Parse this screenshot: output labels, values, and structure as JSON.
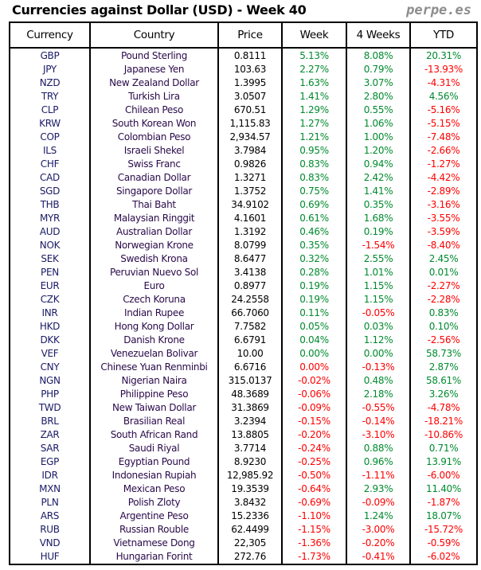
{
  "header": {
    "title": "Currencies against Dollar (USD) - Week 40",
    "brand": "perpe.es"
  },
  "columns": [
    "Currency",
    "Country",
    "Price",
    "Week",
    "4 Weeks",
    "YTD"
  ],
  "colors": {
    "positive": "#008a2e",
    "negative": "#ff0000"
  },
  "rows": [
    {
      "code": "GBP",
      "country": "Pound Sterling",
      "price": "0.8111",
      "week": "5.13%",
      "w4": "8.08%",
      "ytd": "20.31%"
    },
    {
      "code": "JPY",
      "country": "Japanese Yen",
      "price": "103.63",
      "week": "2.27%",
      "w4": "0.79%",
      "ytd": "-13.93%"
    },
    {
      "code": "NZD",
      "country": "New Zealand Dollar",
      "price": "1.3995",
      "week": "1.63%",
      "w4": "3.07%",
      "ytd": "-4.31%"
    },
    {
      "code": "TRY",
      "country": "Turkish Lira",
      "price": "3.0507",
      "week": "1.41%",
      "w4": "2.80%",
      "ytd": "4.56%"
    },
    {
      "code": "CLP",
      "country": "Chilean Peso",
      "price": "670.51",
      "week": "1.29%",
      "w4": "0.55%",
      "ytd": "-5.16%"
    },
    {
      "code": "KRW",
      "country": "South Korean Won",
      "price": "1,115.83",
      "week": "1.27%",
      "w4": "1.06%",
      "ytd": "-5.15%"
    },
    {
      "code": "COP",
      "country": "Colombian Peso",
      "price": "2,934.57",
      "week": "1.21%",
      "w4": "1.00%",
      "ytd": "-7.48%"
    },
    {
      "code": "ILS",
      "country": "Israeli Shekel",
      "price": "3.7984",
      "week": "0.95%",
      "w4": "1.20%",
      "ytd": "-2.66%"
    },
    {
      "code": "CHF",
      "country": "Swiss Franc",
      "price": "0.9826",
      "week": "0.83%",
      "w4": "0.94%",
      "ytd": "-1.27%"
    },
    {
      "code": "CAD",
      "country": "Canadian Dollar",
      "price": "1.3271",
      "week": "0.83%",
      "w4": "2.42%",
      "ytd": "-4.42%"
    },
    {
      "code": "SGD",
      "country": "Singapore Dollar",
      "price": "1.3752",
      "week": "0.75%",
      "w4": "1.41%",
      "ytd": "-2.89%"
    },
    {
      "code": "THB",
      "country": "Thai Baht",
      "price": "34.9102",
      "week": "0.69%",
      "w4": "0.35%",
      "ytd": "-3.16%"
    },
    {
      "code": "MYR",
      "country": "Malaysian Ringgit",
      "price": "4.1601",
      "week": "0.61%",
      "w4": "1.68%",
      "ytd": "-3.55%"
    },
    {
      "code": "AUD",
      "country": "Australian Dollar",
      "price": "1.3192",
      "week": "0.46%",
      "w4": "0.19%",
      "ytd": "-3.59%"
    },
    {
      "code": "NOK",
      "country": "Norwegian Krone",
      "price": "8.0799",
      "week": "0.35%",
      "w4": "-1.54%",
      "ytd": "-8.40%"
    },
    {
      "code": "SEK",
      "country": "Swedish Krona",
      "price": "8.6477",
      "week": "0.32%",
      "w4": "2.55%",
      "ytd": "2.45%"
    },
    {
      "code": "PEN",
      "country": "Peruvian Nuevo Sol",
      "price": "3.4138",
      "week": "0.28%",
      "w4": "1.01%",
      "ytd": "0.01%"
    },
    {
      "code": "EUR",
      "country": "Euro",
      "price": "0.8977",
      "week": "0.19%",
      "w4": "1.15%",
      "ytd": "-2.27%"
    },
    {
      "code": "CZK",
      "country": "Czech Koruna",
      "price": "24.2558",
      "week": "0.19%",
      "w4": "1.15%",
      "ytd": "-2.28%"
    },
    {
      "code": "INR",
      "country": "Indian Rupee",
      "price": "66.7060",
      "week": "0.11%",
      "w4": "-0.05%",
      "ytd": "0.83%"
    },
    {
      "code": "HKD",
      "country": "Hong Kong Dollar",
      "price": "7.7582",
      "week": "0.05%",
      "w4": "0.03%",
      "ytd": "0.10%"
    },
    {
      "code": "DKK",
      "country": "Danish Krone",
      "price": "6.6791",
      "week": "0.04%",
      "w4": "1.12%",
      "ytd": "-2.56%"
    },
    {
      "code": "VEF",
      "country": "Venezuelan Bolivar",
      "price": "10.00",
      "week": "0.00%",
      "w4": "0.00%",
      "ytd": "58.73%"
    },
    {
      "code": "CNY",
      "country": "Chinese Yuan Renminbi",
      "price": "6.6716",
      "week": "0.00%",
      "w4": "-0.13%",
      "ytd": "2.87%",
      "week_color": "negative"
    },
    {
      "code": "NGN",
      "country": "Nigerian Naira",
      "price": "315.0137",
      "week": "-0.02%",
      "w4": "0.48%",
      "ytd": "58.61%"
    },
    {
      "code": "PHP",
      "country": "Philippine Peso",
      "price": "48.3689",
      "week": "-0.06%",
      "w4": "2.18%",
      "ytd": "3.26%"
    },
    {
      "code": "TWD",
      "country": "New Taiwan Dollar",
      "price": "31.3869",
      "week": "-0.09%",
      "w4": "-0.55%",
      "ytd": "-4.78%"
    },
    {
      "code": "BRL",
      "country": "Brasilian Real",
      "price": "3.2394",
      "week": "-0.15%",
      "w4": "-0.14%",
      "ytd": "-18.21%"
    },
    {
      "code": "ZAR",
      "country": "South African Rand",
      "price": "13.8805",
      "week": "-0.20%",
      "w4": "-3.10%",
      "ytd": "-10.86%"
    },
    {
      "code": "SAR",
      "country": "Saudi Riyal",
      "price": "3.7714",
      "week": "-0.24%",
      "w4": "0.88%",
      "ytd": "0.71%"
    },
    {
      "code": "EGP",
      "country": "Egyptian Pound",
      "price": "8.9230",
      "week": "-0.25%",
      "w4": "0.96%",
      "ytd": "13.91%"
    },
    {
      "code": "IDR",
      "country": "Indonesian Rupiah",
      "price": "12,985.92",
      "week": "-0.50%",
      "w4": "-1.11%",
      "ytd": "-6.00%"
    },
    {
      "code": "MXN",
      "country": "Mexican Peso",
      "price": "19.3539",
      "week": "-0.64%",
      "w4": "2.93%",
      "ytd": "11.40%"
    },
    {
      "code": "PLN",
      "country": "Polish Zloty",
      "price": "3.8432",
      "week": "-0.69%",
      "w4": "-0.09%",
      "ytd": "-1.87%"
    },
    {
      "code": "ARS",
      "country": "Argentine Peso",
      "price": "15.2336",
      "week": "-1.10%",
      "w4": "1.24%",
      "ytd": "18.07%"
    },
    {
      "code": "RUB",
      "country": "Russian Rouble",
      "price": "62.4499",
      "week": "-1.15%",
      "w4": "-3.00%",
      "ytd": "-15.72%"
    },
    {
      "code": "VND",
      "country": "Vietnamese Dong",
      "price": "22,305",
      "week": "-1.36%",
      "w4": "-0.20%",
      "ytd": "-0.59%"
    },
    {
      "code": "HUF",
      "country": "Hungarian Forint",
      "price": "272.76",
      "week": "-1.73%",
      "w4": "-0.41%",
      "ytd": "-6.02%"
    }
  ]
}
